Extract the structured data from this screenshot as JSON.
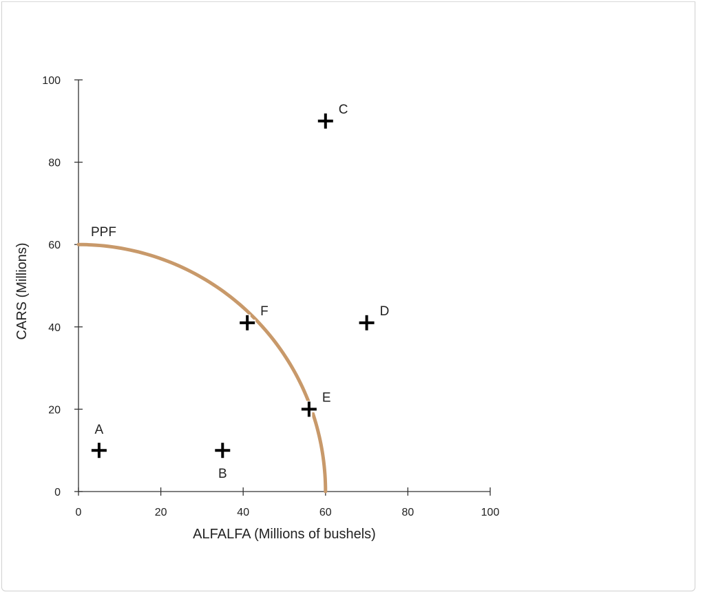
{
  "chart_data": {
    "type": "scatter",
    "title": "",
    "xlabel": "ALFALFA (Millions of bushels)",
    "ylabel": "CARS (Millions)",
    "xlim": [
      0,
      100
    ],
    "ylim": [
      0,
      100
    ],
    "xticks": [
      0,
      20,
      40,
      60,
      80,
      100
    ],
    "yticks": [
      0,
      20,
      40,
      60,
      80,
      100
    ],
    "grid": false,
    "curve": {
      "name": "PPF",
      "x_intercept": 60,
      "y_intercept": 60,
      "color": "#c8996a"
    },
    "points": [
      {
        "label": "A",
        "x": 5,
        "y": 10,
        "label_pos": "above"
      },
      {
        "label": "B",
        "x": 35,
        "y": 10,
        "label_pos": "below"
      },
      {
        "label": "C",
        "x": 60,
        "y": 90,
        "label_pos": "upper-right"
      },
      {
        "label": "D",
        "x": 70,
        "y": 41,
        "label_pos": "upper-right"
      },
      {
        "label": "E",
        "x": 56,
        "y": 20,
        "label_pos": "upper-right"
      },
      {
        "label": "F",
        "x": 41,
        "y": 41,
        "label_pos": "upper-right"
      }
    ],
    "marker_color": "#000000"
  }
}
